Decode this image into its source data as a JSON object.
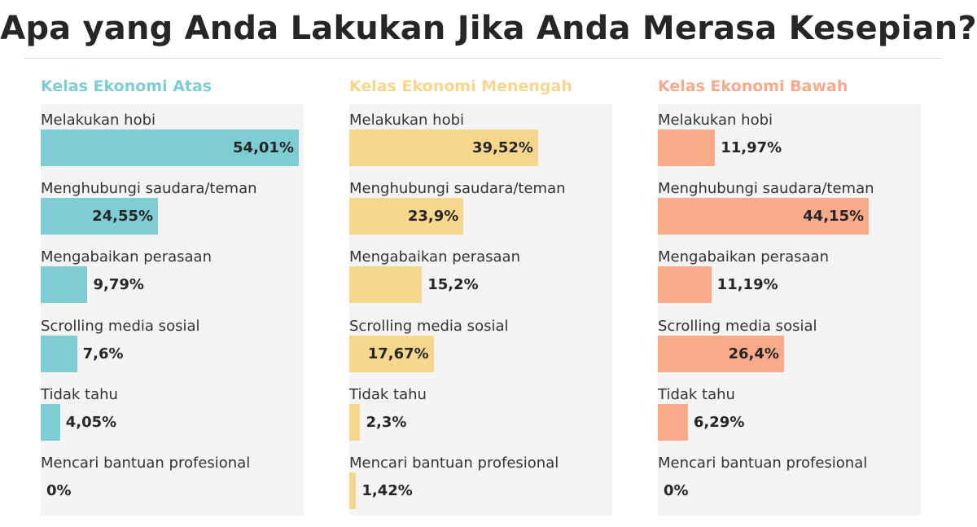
{
  "title": "Apa yang Anda Lakukan Jika Anda Merasa Kesepian?",
  "chart_data": [
    {
      "type": "bar",
      "orientation": "horizontal",
      "title": "Kelas Ekonomi Atas",
      "color": "#7fcdd4",
      "categories": [
        "Melakukan hobi",
        "Menghubungi saudara/teman",
        "Mengabaikan perasaan",
        "Scrolling media sosial",
        "Tidak tahu",
        "Mencari bantuan profesional"
      ],
      "values": [
        54.01,
        24.55,
        9.79,
        7.6,
        4.05,
        0
      ],
      "value_labels": [
        "54,01%",
        "24,55%",
        "9,79%",
        "7,6%",
        "4,05%",
        "0%"
      ],
      "xlim": [
        0,
        55
      ]
    },
    {
      "type": "bar",
      "orientation": "horizontal",
      "title": "Kelas Ekonomi Menengah",
      "color": "#f7d68d",
      "categories": [
        "Melakukan hobi",
        "Menghubungi saudara/teman",
        "Mengabaikan perasaan",
        "Scrolling media sosial",
        "Tidak tahu",
        "Mencari bantuan profesional"
      ],
      "values": [
        39.52,
        23.9,
        15.2,
        17.67,
        2.3,
        1.42
      ],
      "value_labels": [
        "39,52%",
        "23,9%",
        "15,2%",
        "17,67%",
        "2,3%",
        "1,42%"
      ],
      "xlim": [
        0,
        55
      ]
    },
    {
      "type": "bar",
      "orientation": "horizontal",
      "title": "Kelas Ekonomi Bawah",
      "color": "#f7ab8b",
      "categories": [
        "Melakukan hobi",
        "Menghubungi saudara/teman",
        "Mengabaikan perasaan",
        "Scrolling media sosial",
        "Tidak tahu",
        "Mencari bantuan profesional"
      ],
      "values": [
        11.97,
        44.15,
        11.19,
        26.4,
        6.29,
        0
      ],
      "value_labels": [
        "11,97%",
        "44,15%",
        "11,19%",
        "26,4%",
        "6,29%",
        "0%"
      ],
      "xlim": [
        0,
        55
      ]
    }
  ]
}
